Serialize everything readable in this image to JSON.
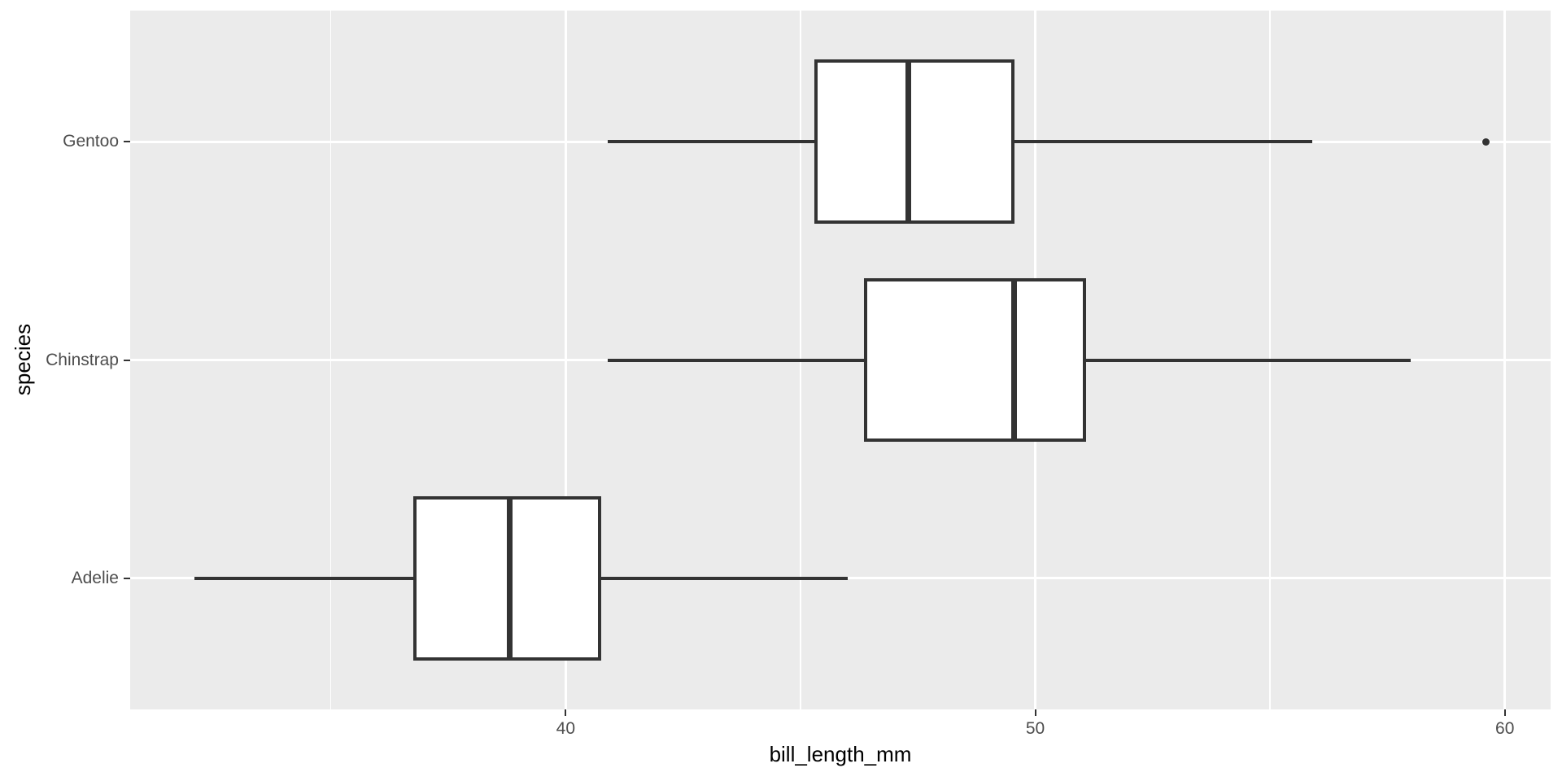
{
  "chart_data": {
    "type": "boxplot",
    "orientation": "horizontal",
    "title": "",
    "xlabel": "bill_length_mm",
    "ylabel": "species",
    "xlim": [
      30.725,
      60.975
    ],
    "x_major_ticks": [
      40,
      50,
      60
    ],
    "x_tick_labels": [
      "40",
      "50",
      "60"
    ],
    "x_minor_gridlines": [
      35,
      45,
      55
    ],
    "categories_top_to_bottom": [
      "Gentoo",
      "Chinstrap",
      "Adelie"
    ],
    "series": [
      {
        "category": "Gentoo",
        "whisker_min": 40.9,
        "q1": 45.3,
        "median": 47.3,
        "q3": 49.55,
        "whisker_max": 55.9,
        "outliers": [
          59.6
        ]
      },
      {
        "category": "Chinstrap",
        "whisker_min": 40.9,
        "q1": 46.35,
        "median": 49.55,
        "q3": 51.08,
        "whisker_max": 58.0,
        "outliers": []
      },
      {
        "category": "Adelie",
        "whisker_min": 32.1,
        "q1": 36.75,
        "median": 38.8,
        "q3": 40.75,
        "whisker_max": 46.0,
        "outliers": []
      }
    ],
    "legend": "none",
    "grid": "on",
    "colors": {
      "panel_background": "#EBEBEB",
      "gridline": "#FFFFFF",
      "box_fill": "#FFFFFF",
      "box_stroke": "#333333",
      "tick_mark": "#333333",
      "tick_label": "#4D4D4D",
      "axis_title": "#000000"
    }
  }
}
